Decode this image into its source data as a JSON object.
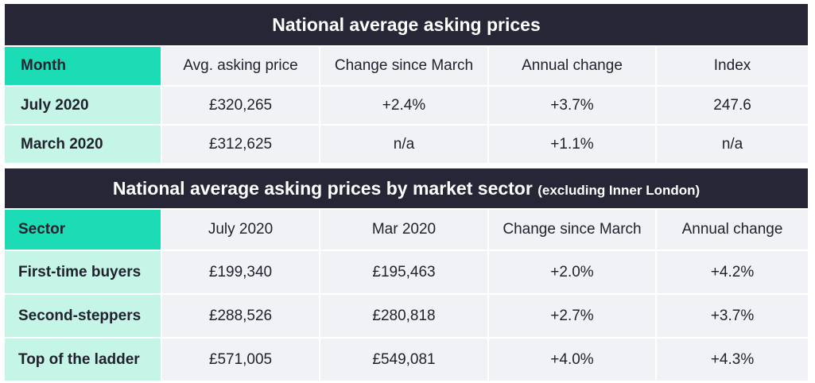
{
  "table1": {
    "title": "National average asking prices",
    "headers": [
      "Month",
      "Avg. asking price",
      "Change since March",
      "Annual change",
      "Index"
    ],
    "rows": [
      [
        "July 2020",
        "£320,265",
        "+2.4%",
        "+3.7%",
        "247.6"
      ],
      [
        "March 2020",
        "£312,625",
        "n/a",
        "+1.1%",
        "n/a"
      ]
    ]
  },
  "table2": {
    "title": "National average asking prices by market sector",
    "title_note": "(excluding Inner London)",
    "headers": [
      "Sector",
      "July 2020",
      "Mar 2020",
      "Change since March",
      "Annual change"
    ],
    "rows": [
      [
        "First-time buyers",
        "£199,340",
        "£195,463",
        "+2.0%",
        "+4.2%"
      ],
      [
        "Second-steppers",
        "£288,526",
        "£280,818",
        "+2.7%",
        "+3.7%"
      ],
      [
        "Top of the ladder",
        "£571,005",
        "£549,081",
        "+4.0%",
        "+4.3%"
      ]
    ]
  },
  "colors": {
    "title_bg": "#262637",
    "header_accent": "#1bdcb4",
    "row_label_bg": "#c4f5e7",
    "cell_bg": "#f1f2f6"
  }
}
